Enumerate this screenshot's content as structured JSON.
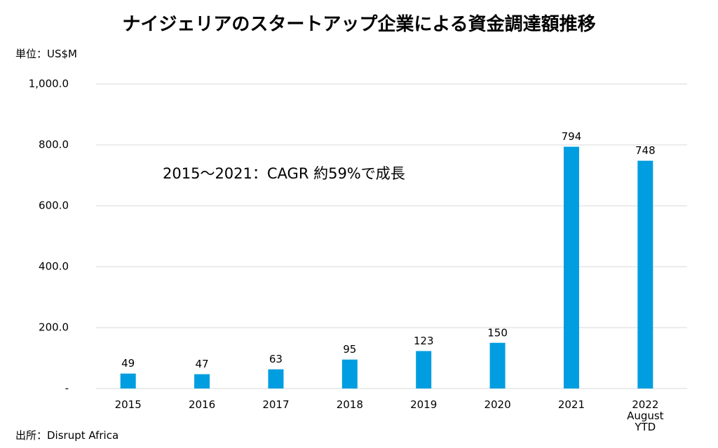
{
  "chart_data": {
    "type": "bar",
    "title": "ナイジェリアのスタートアップ企業による資金調達額推移",
    "unit_label": "単位：US$M",
    "annotation": "2015～2021：CAGR 約59%で成長",
    "source": "出所：Disrupt Africa",
    "categories": [
      "2015",
      "2016",
      "2017",
      "2018",
      "2019",
      "2020",
      "2021",
      "2022 August YTD"
    ],
    "values": [
      49,
      47,
      63,
      95,
      123,
      150,
      794,
      748
    ],
    "color": "#009ee0",
    "ylim": [
      0,
      1000
    ],
    "yticks": [
      {
        "value": 0,
        "label": "-"
      },
      {
        "value": 200,
        "label": "200.0"
      },
      {
        "value": 400,
        "label": "400.0"
      },
      {
        "value": 600,
        "label": "600.0"
      },
      {
        "value": 800,
        "label": "800.0"
      },
      {
        "value": 1000,
        "label": "1,000.0"
      }
    ],
    "grid": true
  }
}
